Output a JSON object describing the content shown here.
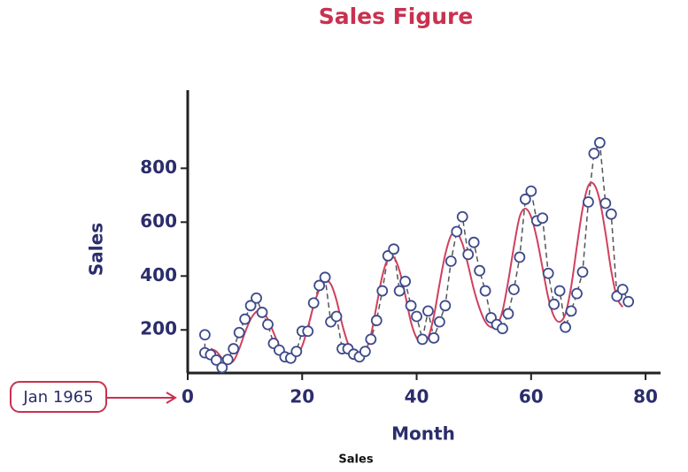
{
  "chart_data": {
    "type": "scatter",
    "title": "Sales Figure",
    "xlabel": "Month",
    "ylabel": "Sales",
    "caption": "Sales",
    "annotation": "Jan 1965",
    "xlim": [
      0,
      82
    ],
    "ylim": [
      40,
      1090
    ],
    "xticks": [
      0,
      20,
      40,
      60,
      80
    ],
    "yticks": [
      200,
      400,
      600,
      800
    ],
    "series": [
      {
        "kind": "points",
        "color": "#3d4a8a",
        "line_color": "#555555",
        "x": [
          3,
          3,
          4,
          5,
          6,
          7,
          8,
          9,
          10,
          11,
          12,
          13,
          14,
          15,
          16,
          17,
          18,
          19,
          20,
          21,
          22,
          23,
          24,
          25,
          26,
          27,
          28,
          29,
          30,
          31,
          32,
          33,
          34,
          35,
          36,
          37,
          38,
          39,
          40,
          41,
          42,
          43,
          44,
          45,
          46,
          47,
          48,
          49,
          50,
          51,
          52,
          53,
          54,
          55,
          56,
          57,
          58,
          59,
          60,
          61,
          62,
          63,
          64,
          65,
          66,
          67,
          68,
          69,
          70,
          71,
          72,
          73,
          74,
          75,
          76,
          77
        ],
        "values": [
          182,
          115,
          108,
          88,
          60,
          90,
          130,
          190,
          240,
          290,
          318,
          265,
          220,
          150,
          125,
          100,
          95,
          120,
          195,
          195,
          300,
          365,
          395,
          230,
          250,
          130,
          130,
          110,
          100,
          120,
          165,
          235,
          345,
          475,
          500,
          345,
          380,
          290,
          250,
          165,
          270,
          170,
          230,
          290,
          455,
          565,
          620,
          480,
          525,
          420,
          345,
          245,
          220,
          205,
          260,
          350,
          470,
          685,
          715,
          605,
          615,
          410,
          295,
          345,
          210,
          270,
          335,
          415,
          675,
          855,
          895,
          670,
          630,
          325,
          350,
          305
        ]
      },
      {
        "kind": "fit",
        "color": "#d0405e",
        "x": [
          4,
          5,
          6,
          7,
          8,
          9,
          10,
          11,
          12,
          13,
          14,
          15,
          16,
          17,
          18,
          19,
          20,
          21,
          22,
          23,
          24,
          25,
          26,
          27,
          28,
          29,
          30,
          31,
          32,
          33,
          34,
          35,
          36,
          37,
          38,
          39,
          40,
          41,
          42,
          43,
          44,
          45,
          46,
          47,
          48,
          49,
          50,
          51,
          52,
          53,
          54,
          55,
          56,
          57,
          58,
          59,
          60,
          61,
          62,
          63,
          64,
          65,
          66,
          67,
          68,
          69,
          70,
          71,
          72,
          73,
          74,
          75,
          76
        ],
        "values": [
          130,
          120,
          95,
          78,
          85,
          130,
          190,
          240,
          268,
          270,
          240,
          190,
          140,
          110,
          100,
          105,
          140,
          210,
          290,
          350,
          380,
          370,
          310,
          220,
          150,
          115,
          105,
          120,
          180,
          290,
          400,
          465,
          470,
          420,
          330,
          230,
          170,
          150,
          170,
          250,
          370,
          480,
          550,
          560,
          520,
          440,
          350,
          280,
          230,
          210,
          215,
          270,
          380,
          510,
          620,
          650,
          620,
          540,
          430,
          320,
          250,
          230,
          260,
          360,
          510,
          650,
          735,
          740,
          680,
          560,
          420,
          320,
          285
        ]
      }
    ]
  }
}
